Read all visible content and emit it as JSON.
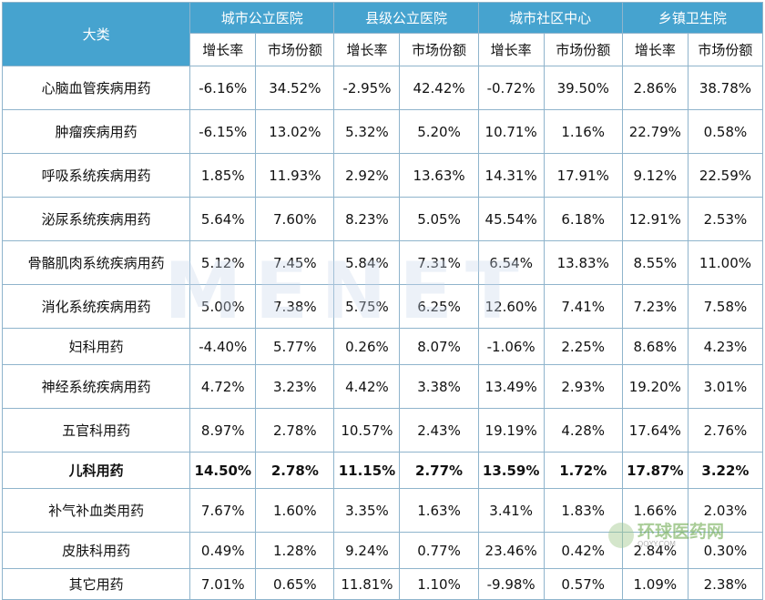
{
  "table": {
    "corner": "大类",
    "groups": [
      "城市公立医院",
      "县级公立医院",
      "城市社区中心",
      "乡镇卫生院"
    ],
    "sub_headers": [
      "增长率",
      "市场份额"
    ],
    "rows": [
      {
        "category": "心脑血管疾病用药",
        "values": [
          "-6.16%",
          "34.52%",
          "-2.95%",
          "42.42%",
          "-0.72%",
          "39.50%",
          "2.86%",
          "38.78%"
        ]
      },
      {
        "category": "肿瘤疾病用药",
        "values": [
          "-6.15%",
          "13.02%",
          "5.32%",
          "5.20%",
          "10.71%",
          "1.16%",
          "22.79%",
          "0.58%"
        ]
      },
      {
        "category": "呼吸系统疾病用药",
        "values": [
          "1.85%",
          "11.93%",
          "2.92%",
          "13.63%",
          "14.31%",
          "17.91%",
          "9.12%",
          "22.59%"
        ]
      },
      {
        "category": "泌尿系统疾病用药",
        "values": [
          "5.64%",
          "7.60%",
          "8.23%",
          "5.05%",
          "45.54%",
          "6.18%",
          "12.91%",
          "2.53%"
        ]
      },
      {
        "category": "骨骼肌肉系统疾病用药",
        "values": [
          "5.12%",
          "7.45%",
          "5.84%",
          "7.31%",
          "6.54%",
          "13.83%",
          "8.55%",
          "11.00%"
        ]
      },
      {
        "category": "消化系统疾病用药",
        "values": [
          "5.00%",
          "7.38%",
          "5.75%",
          "6.25%",
          "12.60%",
          "7.41%",
          "7.23%",
          "7.58%"
        ]
      },
      {
        "category": "妇科用药",
        "values": [
          "-4.40%",
          "5.77%",
          "0.26%",
          "8.07%",
          "-1.06%",
          "2.25%",
          "8.68%",
          "4.23%"
        ]
      },
      {
        "category": "神经系统疾病用药",
        "values": [
          "4.72%",
          "3.23%",
          "4.42%",
          "3.38%",
          "13.49%",
          "2.93%",
          "19.20%",
          "3.01%"
        ]
      },
      {
        "category": "五官科用药",
        "values": [
          "8.97%",
          "2.78%",
          "10.57%",
          "2.43%",
          "19.19%",
          "4.28%",
          "17.64%",
          "2.76%"
        ]
      },
      {
        "category": "儿科用药",
        "bold": true,
        "values": [
          "14.50%",
          "2.78%",
          "11.15%",
          "2.77%",
          "13.59%",
          "1.72%",
          "17.87%",
          "3.22%"
        ]
      },
      {
        "category": "补气补血类用药",
        "values": [
          "7.67%",
          "1.60%",
          "3.35%",
          "1.63%",
          "3.41%",
          "1.83%",
          "1.66%",
          "2.03%"
        ]
      },
      {
        "category": "皮肤科用药",
        "values": [
          "0.49%",
          "1.28%",
          "9.24%",
          "0.77%",
          "23.46%",
          "0.42%",
          "2.84%",
          "0.30%"
        ]
      },
      {
        "category": "其它用药",
        "values": [
          "7.01%",
          "0.65%",
          "11.81%",
          "1.10%",
          "-9.98%",
          "0.57%",
          "1.09%",
          "2.38%"
        ]
      }
    ]
  },
  "watermark": "MENET",
  "logo": {
    "cn": "环球医药网",
    "en": "QQYY.COM"
  },
  "colors": {
    "header_bg": "#46a3cf",
    "header_text": "#ffffff",
    "grid": "#8fb4cc"
  }
}
